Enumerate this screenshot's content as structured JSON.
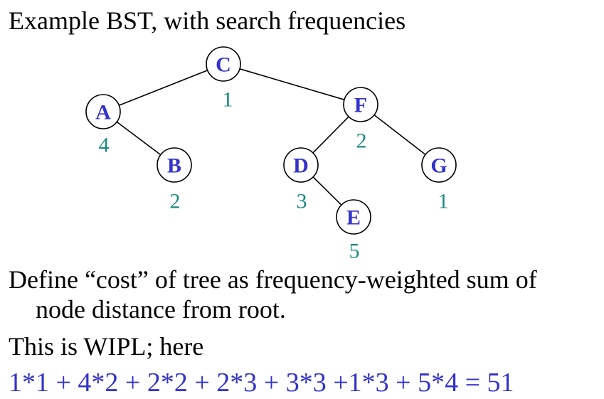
{
  "title": "Example BST, with search frequencies",
  "colors": {
    "node_label": "#3333cc",
    "frequency": "#1a8a80",
    "equation": "#3333cc"
  },
  "tree": {
    "nodes": [
      {
        "id": "C",
        "label": "C",
        "freq": "1"
      },
      {
        "id": "A",
        "label": "A",
        "freq": "4"
      },
      {
        "id": "B",
        "label": "B",
        "freq": "2"
      },
      {
        "id": "F",
        "label": "F",
        "freq": "2"
      },
      {
        "id": "D",
        "label": "D",
        "freq": "3"
      },
      {
        "id": "E",
        "label": "E",
        "freq": "5"
      },
      {
        "id": "G",
        "label": "G",
        "freq": "1"
      }
    ],
    "edges": [
      {
        "from": "C",
        "to": "A"
      },
      {
        "from": "C",
        "to": "F"
      },
      {
        "from": "A",
        "to": "B"
      },
      {
        "from": "F",
        "to": "D"
      },
      {
        "from": "F",
        "to": "G"
      },
      {
        "from": "D",
        "to": "E"
      }
    ]
  },
  "text": {
    "def_line1": "Define “cost” of tree as frequency-weighted sum of",
    "def_line2": "node distance from root.",
    "wipl": "This is WIPL; here",
    "equation": "1*1 + 4*2 + 2*2 + 2*3 + 3*3 +1*3 + 5*4 = 51"
  }
}
